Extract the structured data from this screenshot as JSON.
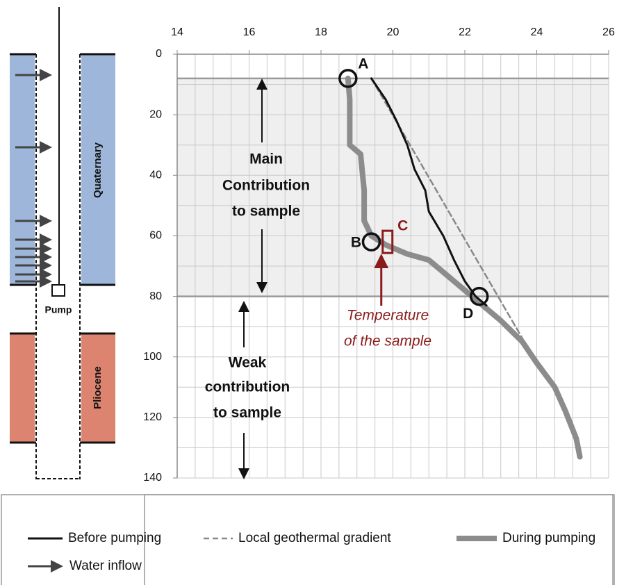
{
  "chart_data": {
    "type": "line",
    "xlim": [
      14,
      26
    ],
    "ylim": [
      0,
      140
    ],
    "xticks": [
      14,
      16,
      18,
      20,
      22,
      24,
      26
    ],
    "yticks": [
      0,
      20,
      40,
      60,
      80,
      100,
      120,
      140
    ],
    "x_grid_step": 0.5,
    "y_grid_step": 10,
    "series": [
      {
        "name": "Before pumping",
        "color": "#111111",
        "style": "solid",
        "width": 3,
        "x": [
          19.4,
          19.8,
          20.1,
          20.4,
          20.6,
          20.9,
          21.0,
          21.4,
          21.7,
          22.0,
          22.3,
          22.6
        ],
        "values": [
          8,
          15,
          22,
          30,
          38,
          45,
          52,
          60,
          68,
          75,
          80,
          83
        ]
      },
      {
        "name": "Local geothermal gradient",
        "color": "#888888",
        "style": "dash",
        "width": 2.5,
        "x": [
          19.4,
          23.9
        ],
        "values": [
          8,
          100
        ]
      },
      {
        "name": "During pumping",
        "color": "#8c8c8c",
        "style": "solid",
        "width": 8,
        "x": [
          18.75,
          18.8,
          18.8,
          19.1,
          19.2,
          19.2,
          19.4,
          19.8,
          20.4,
          21.0,
          21.5,
          22.0,
          22.4,
          23.0,
          23.6,
          24.0,
          24.5,
          24.8,
          25.1,
          25.2
        ],
        "values": [
          8,
          15,
          30,
          33,
          45,
          55,
          60,
          63,
          66,
          68,
          73,
          78,
          82,
          88,
          95,
          102,
          110,
          118,
          127,
          133
        ]
      }
    ],
    "points": [
      {
        "label": "A",
        "x": 18.75,
        "y": 8
      },
      {
        "label": "B",
        "x": 19.4,
        "y": 62
      },
      {
        "label": "D",
        "x": 22.4,
        "y": 80
      }
    ],
    "sample": {
      "label": "C",
      "x": 19.85,
      "y": 62,
      "note_lines": [
        "Temperature",
        "of the sample"
      ]
    },
    "zones": [
      {
        "from": 8,
        "to": 80,
        "shaded": true,
        "label_lines": [
          "Main",
          "Contribution",
          "to sample"
        ]
      },
      {
        "from": 80,
        "to": 140,
        "shaded": false,
        "label_lines": [
          "Weak",
          "contribution",
          "to sample"
        ]
      }
    ],
    "well": {
      "upper": "Quaternary",
      "lower": "Pliocene",
      "pump": "Pump",
      "inflow": "Water inflow"
    }
  }
}
